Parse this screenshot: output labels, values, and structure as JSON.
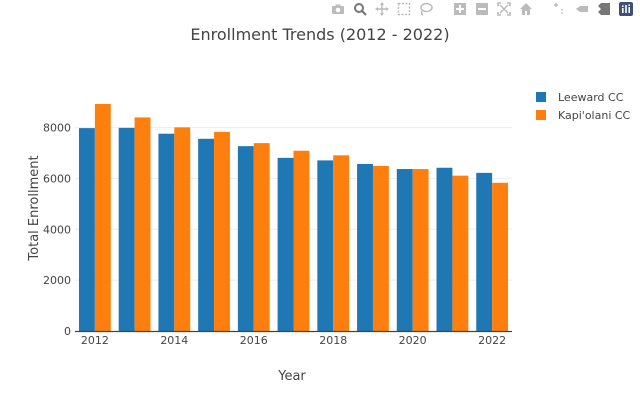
{
  "chart_data": {
    "type": "bar",
    "title": "Enrollment Trends (2012 - 2022)",
    "xlabel": "Year",
    "ylabel": "Total Enrollment",
    "x": [
      2012,
      2013,
      2014,
      2015,
      2016,
      2017,
      2018,
      2019,
      2020,
      2021,
      2022
    ],
    "xticks": [
      "2012",
      "2014",
      "2016",
      "2018",
      "2020",
      "2022"
    ],
    "yticks": [
      "0",
      "2000",
      "4000",
      "6000",
      "8000"
    ],
    "ylim": [
      0,
      9400
    ],
    "grid": true,
    "legend_position": "top-right",
    "series": [
      {
        "name": "Leeward CC",
        "color": "#1f77b4",
        "values": [
          7980,
          7990,
          7760,
          7560,
          7270,
          6810,
          6710,
          6570,
          6370,
          6420,
          6220
        ]
      },
      {
        "name": "Kapi'olani CC",
        "color": "#ff7f0e",
        "values": [
          8930,
          8400,
          8010,
          7830,
          7390,
          7090,
          6910,
          6490,
          6370,
          6110,
          5830
        ]
      }
    ]
  },
  "toolbar": {
    "buttons": [
      "camera-icon",
      "zoom-icon",
      "pan-icon",
      "box-select-icon",
      "lasso-icon",
      "zoom-in-icon",
      "zoom-out-icon",
      "autoscale-icon",
      "reset-axes-icon",
      "spike-lines-icon",
      "hover-closest-icon",
      "hover-compare-icon",
      "plotly-logo-icon"
    ]
  }
}
